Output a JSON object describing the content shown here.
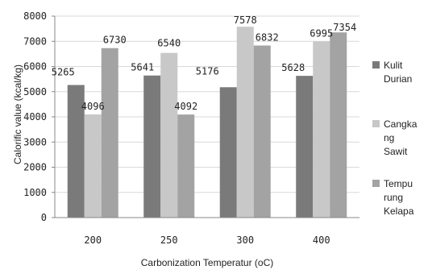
{
  "chart_data": {
    "type": "bar",
    "categories": [
      "200",
      "250",
      "300",
      "400"
    ],
    "series": [
      {
        "name": "Kulit Durian",
        "values": [
          5265,
          5641,
          5176,
          5628
        ],
        "color": "#7a7a7a"
      },
      {
        "name": "Cangkang Sawit",
        "values": [
          4096,
          6540,
          7578,
          6995
        ],
        "color": "#c8c8c8"
      },
      {
        "name": "Tempurung Kelapa",
        "values": [
          6730,
          4092,
          6832,
          7354
        ],
        "color": "#a3a3a3"
      }
    ],
    "legend_lines": [
      [
        "Kulit",
        "Durian"
      ],
      [
        "Cangka",
        "ng",
        "Sawit"
      ],
      [
        "Tempu",
        "rung",
        "Kelapa"
      ]
    ],
    "yticks": [
      "8000",
      "7000",
      "6000",
      "5000",
      "4000",
      "3000",
      "2000",
      "1000",
      "0"
    ],
    "xlabel": "Carbonization Temperatur (oC)",
    "ylabel": "Calorific value (kcal/kg)",
    "ylim": [
      0,
      8000
    ],
    "grid": true,
    "legend_position": "right"
  }
}
